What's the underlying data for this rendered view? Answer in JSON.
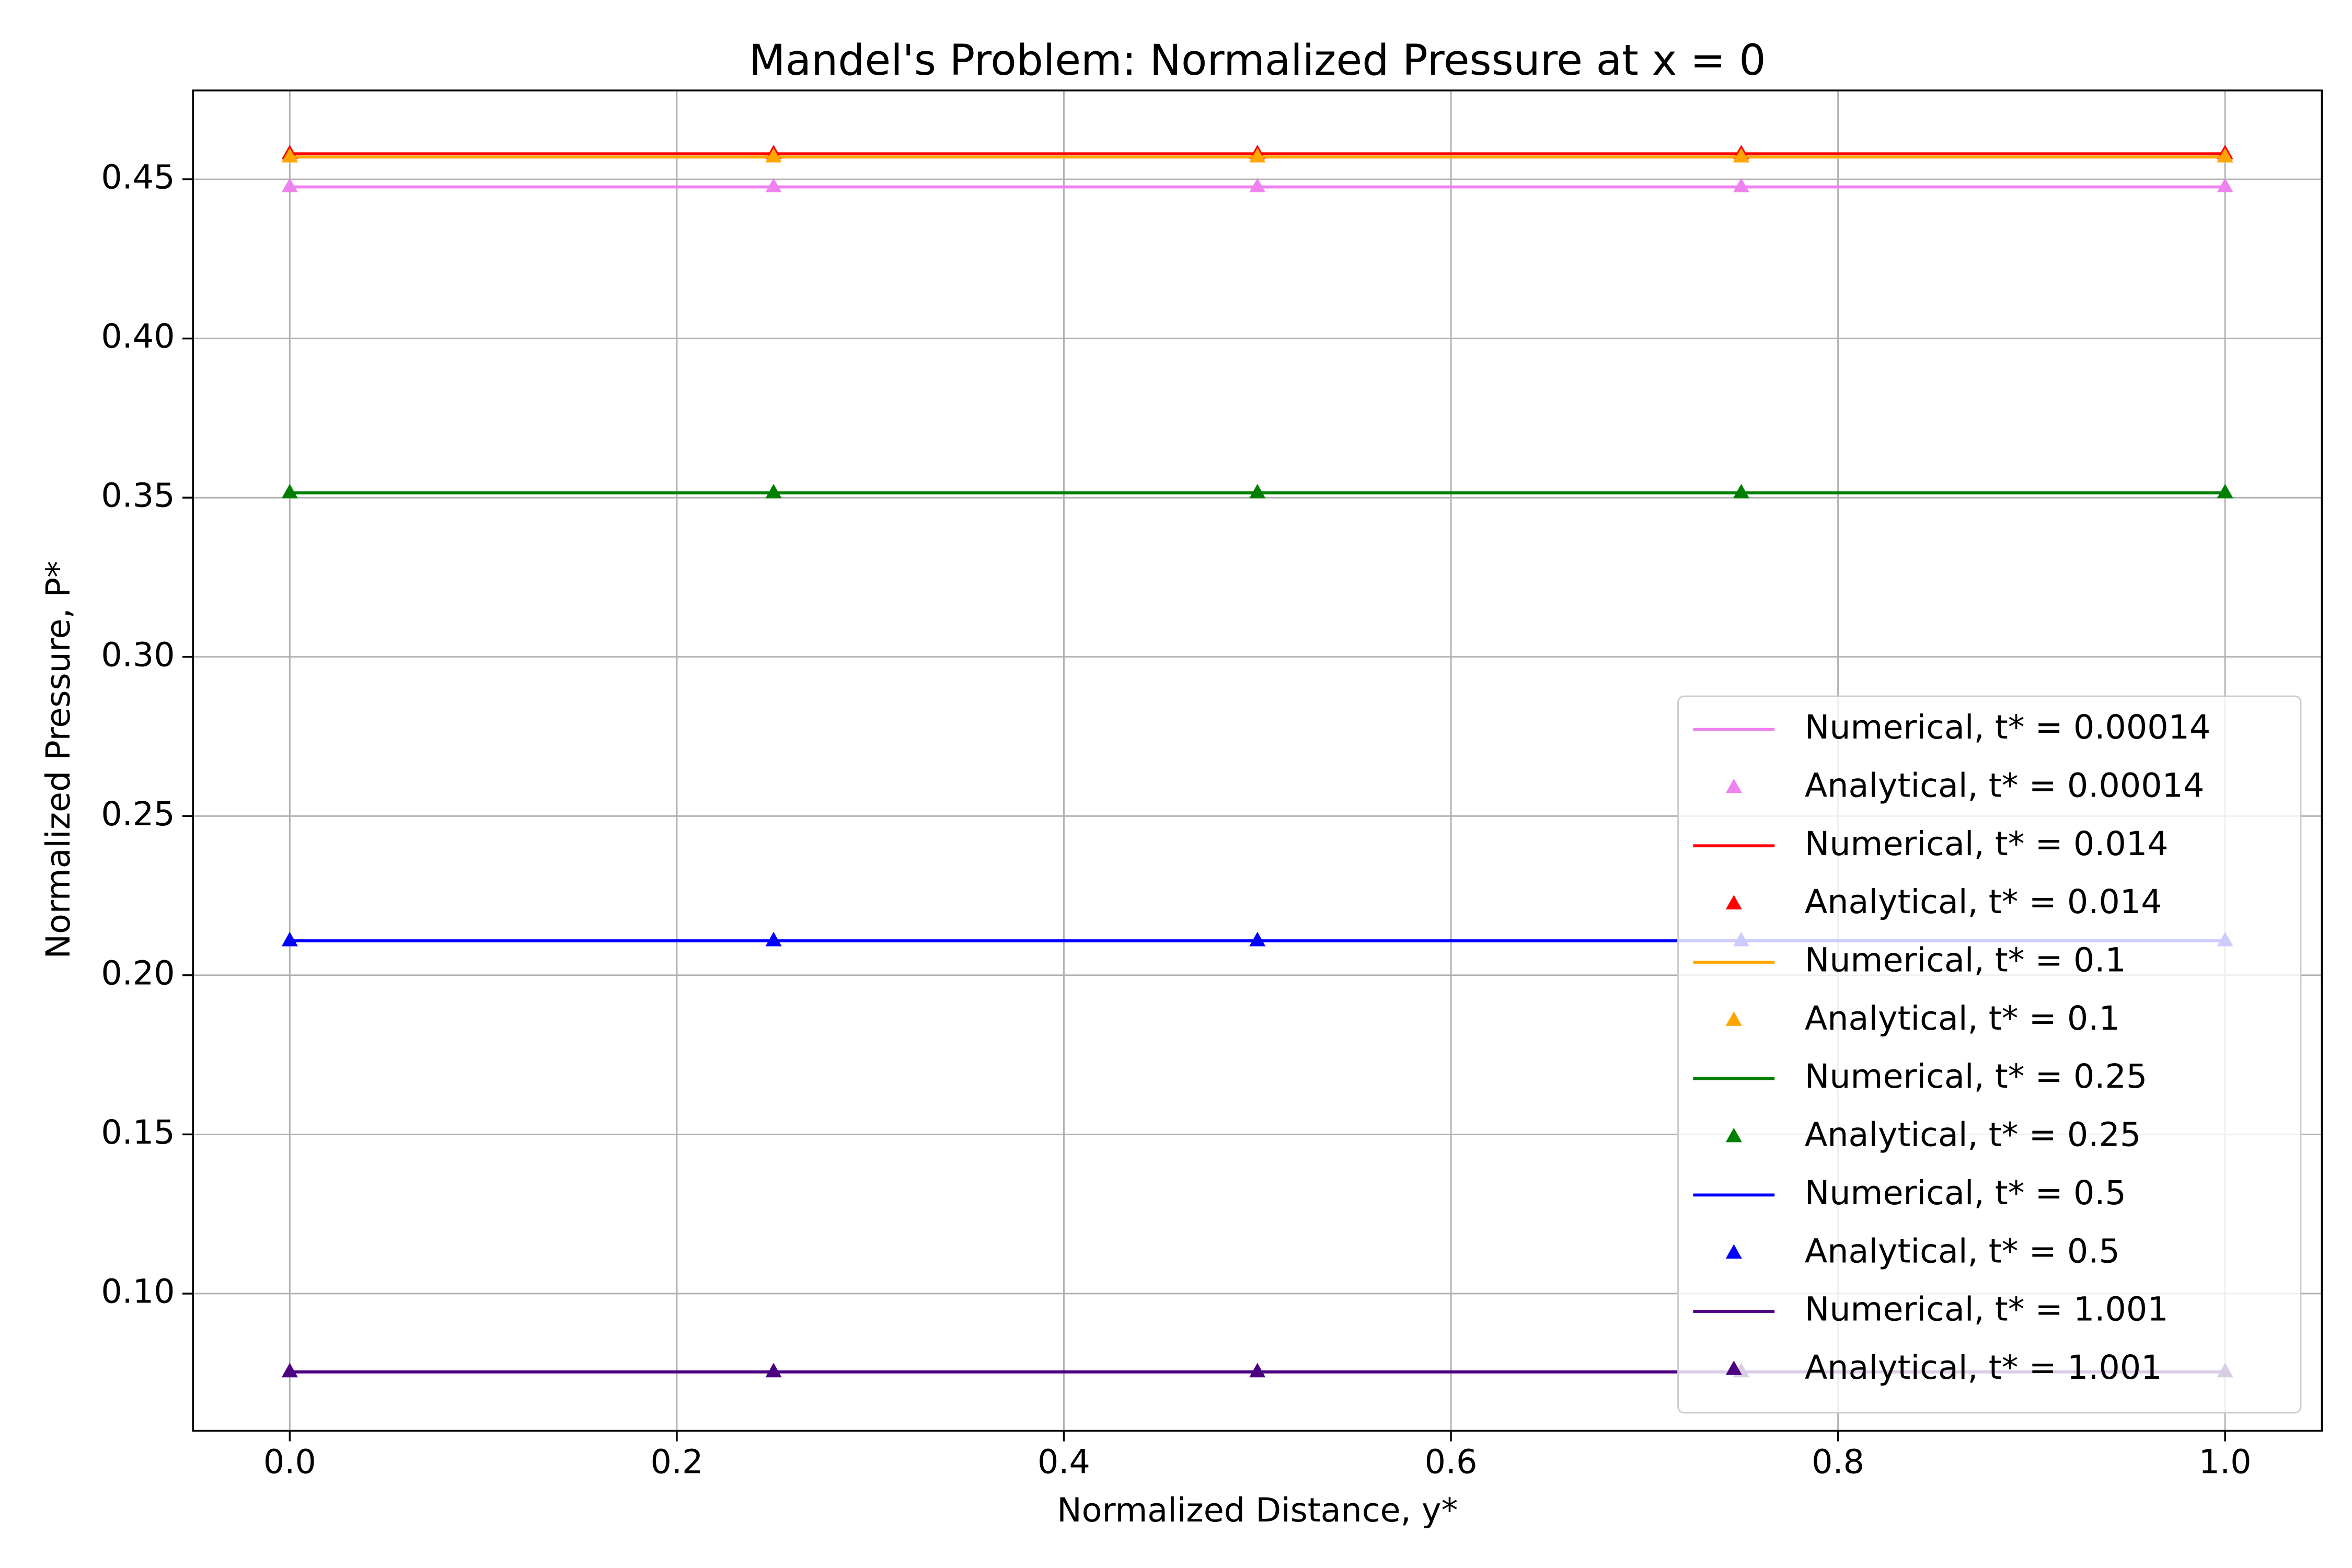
{
  "chart_data": {
    "type": "line",
    "title": "Mandel's Problem: Normalized Pressure at x = 0",
    "xlabel": "Normalized Distance, y*",
    "ylabel": "Normalized Pressure, P*",
    "x": [
      0,
      0.25,
      0.5,
      0.75,
      1
    ],
    "xlim": [
      -0.05,
      1.05
    ],
    "ylim": [
      0.0569,
      0.4779
    ],
    "xticks": [
      {
        "value": 0,
        "label": "0.0"
      },
      0.2,
      0.4,
      0.6,
      0.8,
      {
        "value": 1,
        "label": "1.0"
      }
    ],
    "yticks": [
      {
        "value": 0.1,
        "label": "0.10"
      },
      0.15,
      {
        "value": 0.2,
        "label": "0.20"
      },
      0.25,
      {
        "value": 0.3,
        "label": "0.30"
      },
      0.35,
      {
        "value": 0.4,
        "label": "0.40"
      },
      0.45
    ],
    "grid": true,
    "legend": "lower right",
    "series": [
      {
        "name": "Numerical, t* = 0.00014",
        "color": "#ee82ee",
        "style": "line",
        "values": [
          0.4476,
          0.4476,
          0.4476,
          0.4476,
          0.4476
        ]
      },
      {
        "name": "Analytical, t* = 0.00014",
        "color": "#ee82ee",
        "style": "triangle",
        "values": [
          0.4476,
          0.4476,
          0.4476,
          0.4476,
          0.4476
        ]
      },
      {
        "name": "Numerical, t* = 0.014",
        "color": "#ff0000",
        "style": "line",
        "values": [
          0.458,
          0.458,
          0.458,
          0.458,
          0.458
        ]
      },
      {
        "name": "Analytical, t* = 0.014",
        "color": "#ff0000",
        "style": "triangle",
        "values": [
          0.458,
          0.458,
          0.458,
          0.458,
          0.458
        ]
      },
      {
        "name": "Numerical, t* = 0.1",
        "color": "#ffa500",
        "style": "line",
        "values": [
          0.457,
          0.457,
          0.457,
          0.457,
          0.457
        ]
      },
      {
        "name": "Analytical, t* = 0.1",
        "color": "#ffa500",
        "style": "triangle",
        "values": [
          0.457,
          0.457,
          0.457,
          0.457,
          0.457
        ]
      },
      {
        "name": "Numerical, t* = 0.25",
        "color": "#008000",
        "style": "line",
        "values": [
          0.3515,
          0.3515,
          0.3515,
          0.3515,
          0.3515
        ]
      },
      {
        "name": "Analytical, t* = 0.25",
        "color": "#008000",
        "style": "triangle",
        "values": [
          0.3515,
          0.3515,
          0.3515,
          0.3515,
          0.3515
        ]
      },
      {
        "name": "Numerical, t* = 0.5",
        "color": "#0000ff",
        "style": "line",
        "values": [
          0.2108,
          0.2108,
          0.2108,
          0.2108,
          0.2108
        ]
      },
      {
        "name": "Analytical, t* = 0.5",
        "color": "#0000ff",
        "style": "triangle",
        "values": [
          0.2108,
          0.2108,
          0.2108,
          0.2108,
          0.2108
        ]
      },
      {
        "name": "Numerical, t* = 1.001",
        "color": "#4b0082",
        "style": "line",
        "values": [
          0.0754,
          0.0754,
          0.0754,
          0.0754,
          0.0754
        ]
      },
      {
        "name": "Analytical, t* = 1.001",
        "color": "#4b0082",
        "style": "triangle",
        "values": [
          0.0754,
          0.0754,
          0.0754,
          0.0754,
          0.0754
        ]
      }
    ]
  }
}
